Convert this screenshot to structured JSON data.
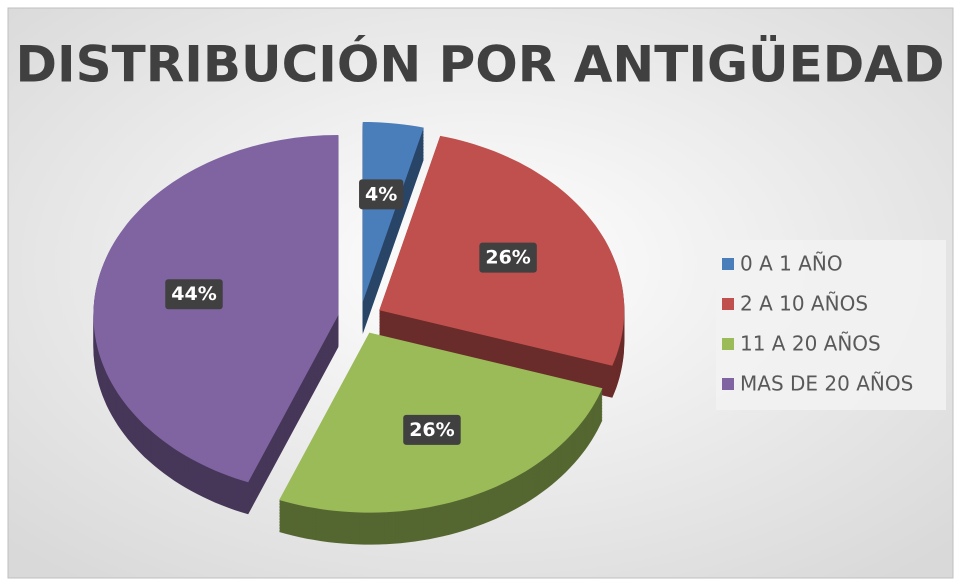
{
  "chart_data": {
    "type": "pie",
    "title": "DISTRIBUCIÓN POR ANTIGÜEDAD",
    "categories": [
      "0 A 1 AÑO",
      "2 A 10 AÑOS",
      "11 A 20 AÑOS",
      "MAS DE 20 AÑOS"
    ],
    "values": [
      4,
      26,
      26,
      44
    ],
    "value_labels": [
      "4%",
      "26%",
      "26%",
      "44%"
    ],
    "colors": [
      "#4a7ebb",
      "#c0504d",
      "#9bbb59",
      "#8064a2"
    ],
    "legend": "right"
  }
}
